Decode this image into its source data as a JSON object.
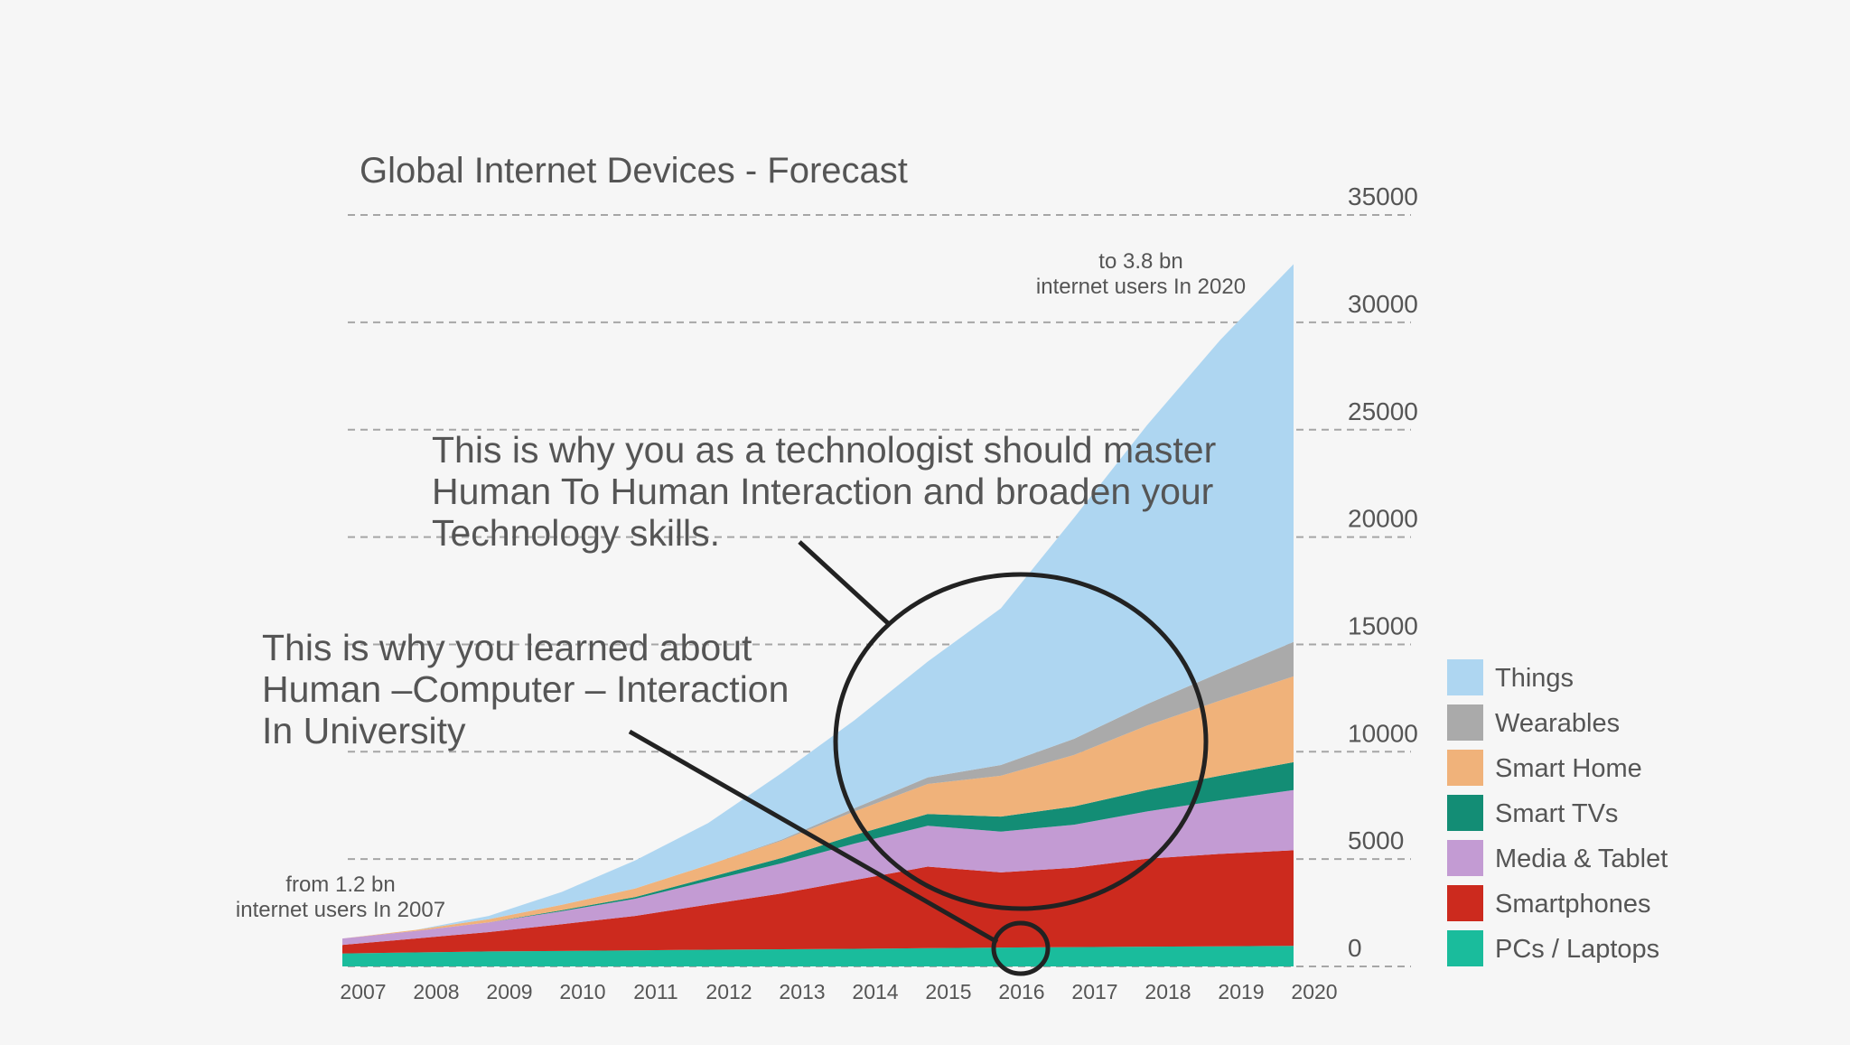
{
  "chart_data": {
    "type": "area",
    "stacked": true,
    "title": "Global Internet Devices - Forecast",
    "xlabel": "",
    "ylabel": "",
    "categories": [
      "2007",
      "2008",
      "2009",
      "2010",
      "2011",
      "2012",
      "2013",
      "2014",
      "2015",
      "2016",
      "2017",
      "2018",
      "2019",
      "2020"
    ],
    "y_ticks": [
      "35000",
      "30000",
      "25000",
      "20000",
      "15000",
      "10000",
      "5000",
      "0"
    ],
    "ylim": [
      0,
      35500
    ],
    "grid": true,
    "legend_position": "bottom-right",
    "series": [
      {
        "name": "PCs / Laptops",
        "color": "#1abc9c",
        "values": [
          600,
          650,
          700,
          720,
          750,
          780,
          800,
          820,
          850,
          880,
          900,
          920,
          940,
          960
        ]
      },
      {
        "name": "Smartphones",
        "color": "#cc2a1e",
        "values": [
          400,
          650,
          900,
          1250,
          1600,
          2100,
          2600,
          3200,
          3800,
          3500,
          3700,
          4100,
          4300,
          4450
        ]
      },
      {
        "name": "Media & Tablet",
        "color": "#c39bd3",
        "values": [
          300,
          350,
          450,
          600,
          800,
          1100,
          1400,
          1700,
          1900,
          1900,
          2000,
          2200,
          2500,
          2800
        ]
      },
      {
        "name": "Smart TVs",
        "color": "#138d75",
        "values": [
          0,
          0,
          0,
          50,
          80,
          150,
          250,
          400,
          550,
          700,
          850,
          1000,
          1150,
          1300
        ]
      },
      {
        "name": "Smart Home",
        "color": "#f0b27a",
        "values": [
          0,
          50,
          150,
          250,
          400,
          600,
          800,
          1100,
          1400,
          1900,
          2400,
          3000,
          3500,
          4000
        ]
      },
      {
        "name": "Wearables",
        "color": "#aaaaaa",
        "values": [
          0,
          0,
          0,
          0,
          0,
          0,
          50,
          150,
          300,
          500,
          750,
          1000,
          1300,
          1600
        ]
      },
      {
        "name": "Things",
        "color": "#aed6f1",
        "values": [
          0,
          0,
          150,
          600,
          1300,
          1950,
          3100,
          4100,
          5400,
          7300,
          10300,
          13000,
          15500,
          17600
        ]
      }
    ],
    "annotations": [
      {
        "id": "start",
        "lines": [
          "from 1.2 bn",
          "internet users In 2007"
        ]
      },
      {
        "id": "end",
        "lines": [
          "to 3.8 bn",
          "internet users In 2020"
        ]
      },
      {
        "id": "h2h",
        "lines": [
          "This is why you as a technologist should master",
          "Human To Human Interaction and broaden your",
          "Technology skills."
        ]
      },
      {
        "id": "hci",
        "lines": [
          "This is why you learned about",
          "Human –Computer – Interaction",
          "In University"
        ]
      }
    ]
  }
}
